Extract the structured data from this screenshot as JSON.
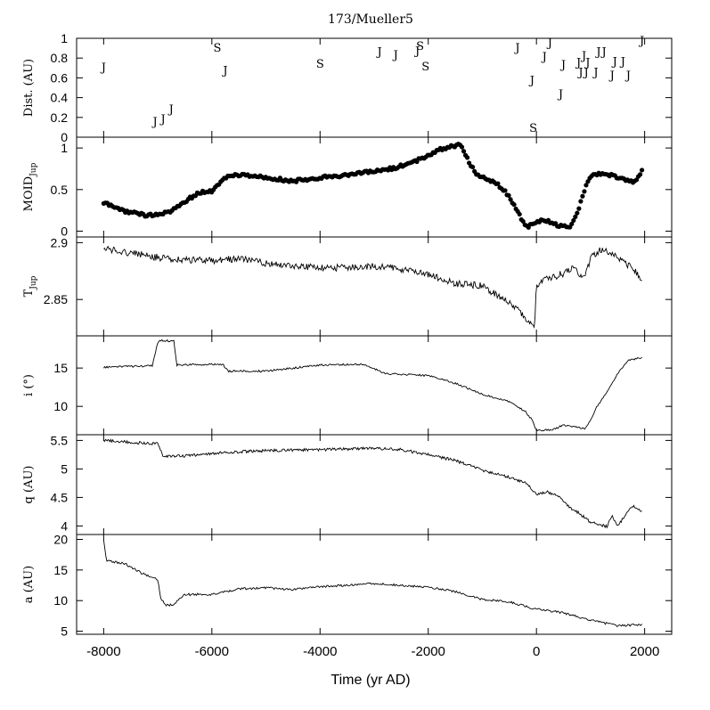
{
  "chart_data": {
    "type": "multi-panel",
    "title": "173/Mueller5",
    "xlabel": "Time (yr AD)",
    "xlim": [
      -8500,
      2500
    ],
    "xticks": [
      -8000,
      -6000,
      -4000,
      -2000,
      0,
      2000
    ],
    "xtick_labels": [
      "-8000",
      "-6000",
      "-4000",
      "-2000",
      "0",
      "2000"
    ],
    "panels": [
      {
        "id": "dist",
        "type": "scatter-glyph",
        "ylabel": "Dist. (AU)",
        "ylim": [
          0,
          1
        ],
        "yticks": [
          0,
          0.2,
          0.4,
          0.6,
          0.8,
          1
        ],
        "ytick_labels": [
          "0",
          "0.2",
          "0.4",
          "0.6",
          "0.8",
          "1"
        ],
        "points": [
          {
            "x": -8000,
            "y": 0.71,
            "label": "J"
          },
          {
            "x": -7050,
            "y": 0.16,
            "label": "J"
          },
          {
            "x": -6900,
            "y": 0.19,
            "label": "J"
          },
          {
            "x": -6750,
            "y": 0.29,
            "label": "J"
          },
          {
            "x": -5900,
            "y": 0.91,
            "label": "S"
          },
          {
            "x": -5750,
            "y": 0.68,
            "label": "J"
          },
          {
            "x": -4000,
            "y": 0.75,
            "label": "S"
          },
          {
            "x": -2900,
            "y": 0.87,
            "label": "J"
          },
          {
            "x": -2600,
            "y": 0.84,
            "label": "J"
          },
          {
            "x": -2150,
            "y": 0.93,
            "label": "S"
          },
          {
            "x": -2200,
            "y": 0.88,
            "label": "J"
          },
          {
            "x": -2050,
            "y": 0.72,
            "label": "S"
          },
          {
            "x": -350,
            "y": 0.91,
            "label": "J"
          },
          {
            "x": -80,
            "y": 0.58,
            "label": "J"
          },
          {
            "x": -60,
            "y": 0.1,
            "label": "S"
          },
          {
            "x": 150,
            "y": 0.82,
            "label": "J"
          },
          {
            "x": 250,
            "y": 0.96,
            "label": "J"
          },
          {
            "x": 450,
            "y": 0.44,
            "label": "J"
          },
          {
            "x": 500,
            "y": 0.74,
            "label": "J"
          },
          {
            "x": 780,
            "y": 0.76,
            "label": "J"
          },
          {
            "x": 880,
            "y": 0.83,
            "label": "J"
          },
          {
            "x": 950,
            "y": 0.76,
            "label": "J"
          },
          {
            "x": 820,
            "y": 0.66,
            "label": "J"
          },
          {
            "x": 920,
            "y": 0.66,
            "label": "J"
          },
          {
            "x": 1100,
            "y": 0.66,
            "label": "J"
          },
          {
            "x": 1150,
            "y": 0.87,
            "label": "J"
          },
          {
            "x": 1250,
            "y": 0.87,
            "label": "J"
          },
          {
            "x": 1400,
            "y": 0.63,
            "label": "J"
          },
          {
            "x": 1450,
            "y": 0.77,
            "label": "J"
          },
          {
            "x": 1600,
            "y": 0.77,
            "label": "J"
          },
          {
            "x": 1700,
            "y": 0.63,
            "label": "J"
          },
          {
            "x": 1950,
            "y": 0.98,
            "label": "J"
          }
        ]
      },
      {
        "id": "moid",
        "type": "scatter",
        "ylabel": "MOID",
        "ylabel_sub": "Jup",
        "ylim": [
          -0.07,
          1.13
        ],
        "yticks": [
          0,
          0.5,
          1
        ],
        "ytick_labels": [
          "0",
          "0.5",
          "1"
        ],
        "anchors": [
          [
            -8000,
            0.34
          ],
          [
            -7600,
            0.24
          ],
          [
            -7200,
            0.19
          ],
          [
            -6800,
            0.22
          ],
          [
            -6500,
            0.36
          ],
          [
            -6200,
            0.47
          ],
          [
            -6000,
            0.48
          ],
          [
            -5800,
            0.62
          ],
          [
            -5600,
            0.68
          ],
          [
            -5300,
            0.67
          ],
          [
            -4800,
            0.63
          ],
          [
            -4500,
            0.6
          ],
          [
            -4200,
            0.63
          ],
          [
            -3800,
            0.66
          ],
          [
            -3400,
            0.68
          ],
          [
            -3000,
            0.72
          ],
          [
            -2700,
            0.75
          ],
          [
            -2400,
            0.8
          ],
          [
            -2100,
            0.88
          ],
          [
            -1800,
            0.98
          ],
          [
            -1600,
            1.02
          ],
          [
            -1400,
            1.04
          ],
          [
            -1300,
            0.9
          ],
          [
            -1100,
            0.67
          ],
          [
            -800,
            0.6
          ],
          [
            -600,
            0.5
          ],
          [
            -400,
            0.3
          ],
          [
            -200,
            0.05
          ],
          [
            -100,
            0.07
          ],
          [
            0,
            0.12
          ],
          [
            200,
            0.12
          ],
          [
            400,
            0.07
          ],
          [
            600,
            0.04
          ],
          [
            700,
            0.15
          ],
          [
            800,
            0.3
          ],
          [
            900,
            0.52
          ],
          [
            1000,
            0.67
          ],
          [
            1200,
            0.7
          ],
          [
            1400,
            0.67
          ],
          [
            1600,
            0.63
          ],
          [
            1800,
            0.58
          ],
          [
            1950,
            0.72
          ]
        ],
        "n_points": 300,
        "jitter": 0.018
      },
      {
        "id": "tjup",
        "type": "line",
        "ylabel": "T",
        "ylabel_sub": "Jup",
        "ylim": [
          2.818,
          2.905
        ],
        "yticks": [
          2.85,
          2.9
        ],
        "ytick_labels": [
          "2.85",
          "2.9"
        ],
        "anchors": [
          [
            -8000,
            2.895
          ],
          [
            -7500,
            2.891
          ],
          [
            -7000,
            2.887
          ],
          [
            -6500,
            2.885
          ],
          [
            -6000,
            2.884
          ],
          [
            -5500,
            2.886
          ],
          [
            -5000,
            2.882
          ],
          [
            -4500,
            2.879
          ],
          [
            -4000,
            2.878
          ],
          [
            -3500,
            2.878
          ],
          [
            -3000,
            2.879
          ],
          [
            -2500,
            2.877
          ],
          [
            -2000,
            2.872
          ],
          [
            -1500,
            2.864
          ],
          [
            -1000,
            2.862
          ],
          [
            -700,
            2.853
          ],
          [
            -400,
            2.843
          ],
          [
            -200,
            2.834
          ],
          [
            -40,
            2.823
          ],
          [
            0,
            2.862
          ],
          [
            200,
            2.868
          ],
          [
            500,
            2.873
          ],
          [
            700,
            2.878
          ],
          [
            800,
            2.871
          ],
          [
            900,
            2.87
          ],
          [
            1000,
            2.887
          ],
          [
            1200,
            2.894
          ],
          [
            1400,
            2.89
          ],
          [
            1600,
            2.883
          ],
          [
            1800,
            2.877
          ],
          [
            1950,
            2.867
          ]
        ],
        "n_points": 600,
        "jitter": 0.003
      },
      {
        "id": "incl",
        "type": "line",
        "ylabel": "i (°)",
        "ylim": [
          6.3,
          19.2
        ],
        "yticks": [
          10,
          15
        ],
        "ytick_labels": [
          "10",
          "15"
        ],
        "anchors": [
          [
            -8000,
            15.1
          ],
          [
            -7100,
            15.3
          ],
          [
            -7000,
            18.4
          ],
          [
            -6950,
            18.6
          ],
          [
            -6700,
            18.5
          ],
          [
            -6650,
            15.4
          ],
          [
            -5800,
            15.5
          ],
          [
            -5700,
            14.6
          ],
          [
            -5000,
            14.6
          ],
          [
            -4000,
            15.4
          ],
          [
            -3200,
            15.5
          ],
          [
            -2800,
            14.3
          ],
          [
            -2000,
            14
          ],
          [
            -1500,
            13
          ],
          [
            -1000,
            11.6
          ],
          [
            -500,
            10.6
          ],
          [
            -200,
            9.3
          ],
          [
            -80,
            8.2
          ],
          [
            0,
            6.9
          ],
          [
            300,
            6.9
          ],
          [
            500,
            7.6
          ],
          [
            900,
            7.1
          ],
          [
            1000,
            8.2
          ],
          [
            1100,
            9.8
          ],
          [
            1300,
            11.8
          ],
          [
            1500,
            14.3
          ],
          [
            1700,
            16
          ],
          [
            1950,
            16.4
          ]
        ],
        "n_points": 500,
        "jitter": 0.12
      },
      {
        "id": "q",
        "type": "line",
        "ylabel": "q (AU)",
        "ylim": [
          3.85,
          5.6
        ],
        "yticks": [
          4,
          4.5,
          5,
          5.5
        ],
        "ytick_labels": [
          "4",
          "4.5",
          "5",
          "5.5"
        ],
        "anchors": [
          [
            -8000,
            5.5
          ],
          [
            -7000,
            5.44
          ],
          [
            -6900,
            5.22
          ],
          [
            -6500,
            5.23
          ],
          [
            -6000,
            5.27
          ],
          [
            -5500,
            5.3
          ],
          [
            -5000,
            5.32
          ],
          [
            -4000,
            5.34
          ],
          [
            -3000,
            5.36
          ],
          [
            -2500,
            5.34
          ],
          [
            -2000,
            5.25
          ],
          [
            -1500,
            5.15
          ],
          [
            -1000,
            4.98
          ],
          [
            -500,
            4.85
          ],
          [
            -200,
            4.76
          ],
          [
            0,
            4.55
          ],
          [
            200,
            4.6
          ],
          [
            400,
            4.52
          ],
          [
            600,
            4.33
          ],
          [
            800,
            4.22
          ],
          [
            1000,
            4.06
          ],
          [
            1300,
            3.99
          ],
          [
            1400,
            4.18
          ],
          [
            1500,
            3.99
          ],
          [
            1700,
            4.28
          ],
          [
            1800,
            4.36
          ],
          [
            1950,
            4.25
          ]
        ],
        "n_points": 600,
        "jitter": 0.025
      },
      {
        "id": "a",
        "type": "line",
        "ylabel": "a (AU)",
        "ylim": [
          4.5,
          20.8
        ],
        "yticks": [
          5,
          10,
          15,
          20
        ],
        "ytick_labels": [
          "5",
          "10",
          "15",
          "20"
        ],
        "anchors": [
          [
            -8000,
            20
          ],
          [
            -7950,
            16.5
          ],
          [
            -7600,
            16
          ],
          [
            -7300,
            14.5
          ],
          [
            -7000,
            13.5
          ],
          [
            -6950,
            10.5
          ],
          [
            -6850,
            9.2
          ],
          [
            -6700,
            9.4
          ],
          [
            -6500,
            11
          ],
          [
            -6000,
            11
          ],
          [
            -5500,
            11.9
          ],
          [
            -5000,
            12.1
          ],
          [
            -4500,
            11.8
          ],
          [
            -4000,
            12.3
          ],
          [
            -3500,
            12.5
          ],
          [
            -3000,
            12.8
          ],
          [
            -2500,
            12.5
          ],
          [
            -2000,
            12.2
          ],
          [
            -1500,
            11.5
          ],
          [
            -1000,
            10.2
          ],
          [
            -500,
            9.8
          ],
          [
            0,
            8.6
          ],
          [
            500,
            8
          ],
          [
            1000,
            6.8
          ],
          [
            1500,
            5.9
          ],
          [
            1950,
            6.1
          ]
        ],
        "n_points": 500,
        "jitter": 0.18
      }
    ]
  }
}
